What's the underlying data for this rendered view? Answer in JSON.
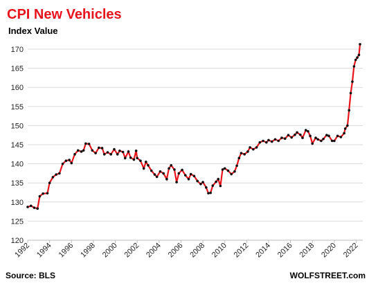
{
  "chart_data": {
    "type": "line",
    "title": "CPI New Vehicles",
    "y_label": "Index Value",
    "source": "Source: BLS",
    "watermark": "WOLFSTREET.com",
    "x": [
      1992.0,
      1992.3,
      1992.6,
      1992.9,
      1993.1,
      1993.4,
      1993.8,
      1994.0,
      1994.3,
      1994.6,
      1994.9,
      1995.2,
      1995.5,
      1995.8,
      1996.0,
      1996.3,
      1996.6,
      1996.9,
      1997.1,
      1997.3,
      1997.6,
      1997.9,
      1998.2,
      1998.5,
      1998.8,
      1999.0,
      1999.3,
      1999.6,
      1999.9,
      2000.2,
      2000.4,
      2000.7,
      2000.9,
      2001.2,
      2001.4,
      2001.7,
      2001.9,
      2002.0,
      2002.3,
      2002.6,
      2002.8,
      2003.0,
      2003.3,
      2003.6,
      2003.8,
      2004.1,
      2004.4,
      2004.7,
      2004.9,
      2005.1,
      2005.4,
      2005.6,
      2005.8,
      2006.1,
      2006.4,
      2006.7,
      2006.9,
      2007.2,
      2007.5,
      2007.8,
      2008.0,
      2008.3,
      2008.5,
      2008.7,
      2008.9,
      2009.2,
      2009.4,
      2009.6,
      2009.8,
      2010.0,
      2010.3,
      2010.6,
      2010.9,
      2011.1,
      2011.3,
      2011.5,
      2011.8,
      2012.1,
      2012.3,
      2012.6,
      2012.9,
      2013.2,
      2013.5,
      2013.8,
      2014.0,
      2014.3,
      2014.6,
      2014.9,
      2015.2,
      2015.5,
      2015.8,
      2016.1,
      2016.4,
      2016.6,
      2016.9,
      2017.1,
      2017.4,
      2017.6,
      2017.8,
      2018.0,
      2018.3,
      2018.5,
      2018.8,
      2019.0,
      2019.3,
      2019.5,
      2019.8,
      2020.0,
      2020.3,
      2020.6,
      2020.9,
      2021.0,
      2021.2,
      2021.35,
      2021.5,
      2021.65,
      2021.8,
      2021.95,
      2022.1,
      2022.25,
      2022.35
    ],
    "series": [
      {
        "name": "CPI New Vehicles",
        "color": "#e8141b",
        "marker_color": "#111111",
        "values": [
          128.7,
          129.0,
          128.5,
          128.3,
          131.5,
          132.2,
          132.3,
          135.0,
          136.5,
          137.2,
          137.5,
          140.0,
          140.8,
          141.0,
          140.2,
          142.5,
          143.5,
          143.2,
          143.5,
          145.3,
          145.2,
          143.5,
          142.8,
          144.2,
          144.1,
          142.5,
          143.0,
          142.5,
          143.8,
          142.5,
          143.4,
          143.1,
          141.5,
          143.2,
          141.6,
          141.1,
          143.4,
          141.5,
          140.8,
          138.8,
          140.5,
          139.6,
          138.2,
          137.2,
          136.6,
          138.0,
          137.5,
          136.0,
          138.8,
          139.6,
          138.5,
          135.2,
          137.5,
          138.4,
          137.0,
          136.0,
          137.3,
          136.8,
          135.5,
          134.7,
          135.2,
          133.8,
          132.3,
          132.4,
          134.3,
          135.3,
          136.0,
          134.2,
          138.5,
          138.8,
          138.2,
          137.3,
          138.0,
          139.5,
          141.5,
          142.8,
          142.5,
          143.2,
          144.3,
          143.8,
          144.3,
          145.6,
          146.0,
          145.6,
          146.2,
          145.8,
          146.4,
          146.0,
          146.8,
          146.6,
          147.5,
          146.9,
          147.6,
          148.2,
          147.6,
          146.8,
          148.8,
          148.5,
          147.3,
          145.3,
          146.8,
          146.4,
          146.0,
          146.5,
          147.5,
          147.3,
          146.0,
          146.0,
          147.3,
          147.0,
          148.0,
          149.2,
          150.0,
          154.0,
          158.5,
          161.5,
          165.5,
          167.2,
          167.8,
          168.5,
          171.3
        ]
      }
    ],
    "xlim": [
      1992,
      2022.6
    ],
    "xticks": [
      1992,
      1994,
      1996,
      1998,
      2000,
      2002,
      2004,
      2006,
      2008,
      2010,
      2012,
      2014,
      2016,
      2018,
      2020,
      2022
    ],
    "ylim": [
      120,
      172
    ],
    "yticks": [
      120,
      125,
      130,
      135,
      140,
      145,
      150,
      155,
      160,
      165,
      170
    ],
    "grid": true
  }
}
